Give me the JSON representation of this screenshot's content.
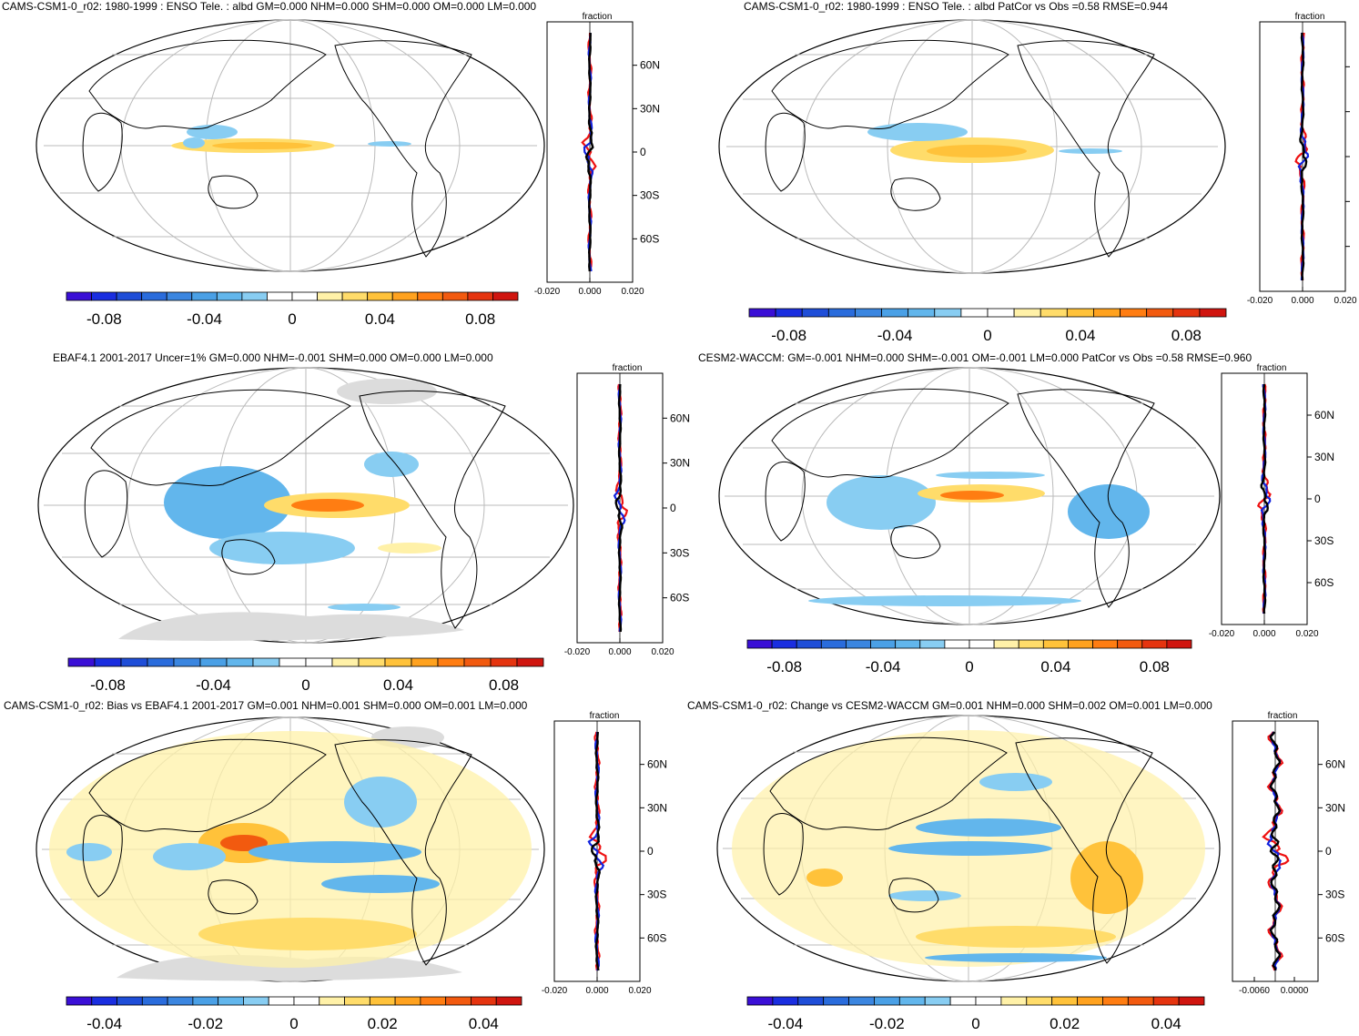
{
  "palette": [
    "#3a0fd6",
    "#1a2ee0",
    "#1f4ed8",
    "#2a6cdc",
    "#3b86e0",
    "#4aa0e6",
    "#62b6ec",
    "#88cdf2",
    "#ffffff",
    "#ffffff",
    "#fff1a8",
    "#ffdc6a",
    "#ffc23a",
    "#ffa21f",
    "#ff7d12",
    "#f25a0f",
    "#e5340f",
    "#d0150f"
  ],
  "profile_labels": {
    "fraction": "fraction"
  },
  "lat_ticks": [
    "60N",
    "30N",
    "0",
    "30S",
    "60S"
  ],
  "colors": {
    "red": "#ee1111",
    "blue": "#1122dd",
    "black": "#000000",
    "grid": "#bbbbbb",
    "land_mask": "#dcdcdc"
  },
  "panels": [
    {
      "id": "p1",
      "title": "CAMS-CSM1-0_r02: 1980-1999 : ENSO Tele. : albd GM=0.000 NHM=0.000 SHM=0.000 OM=0.000 LM=0.000",
      "colorbar_labels": [
        "-0.08",
        "-0.04",
        "0",
        "0.04",
        "0.08"
      ],
      "profile_xticks": [
        "-0.020",
        "0.000",
        "0.020"
      ],
      "show_lat_labels": true
    },
    {
      "id": "p2",
      "title": "CAMS-CSM1-0_r02: 1980-1999 : ENSO Tele. : albd PatCor vs Obs =0.58 RMSE=0.944",
      "colorbar_labels": [
        "-0.08",
        "-0.04",
        "0",
        "0.04",
        "0.08"
      ],
      "profile_xticks": [
        "-0.020",
        "0.000",
        "0.020"
      ],
      "show_lat_labels": false
    },
    {
      "id": "p3",
      "title": "EBAF4.1 2001-2017 Uncer=1% GM=0.000 NHM=-0.001 SHM=0.000 OM=0.000 LM=0.000",
      "colorbar_labels": [
        "-0.08",
        "-0.04",
        "0",
        "0.04",
        "0.08"
      ],
      "profile_xticks": [
        "-0.020",
        "0.000",
        "0.020"
      ],
      "show_lat_labels": true
    },
    {
      "id": "p4",
      "title": "CESM2-WACCM: GM=-0.001 NHM=0.000 SHM=-0.001 OM=-0.001 LM=0.000 PatCor vs Obs =0.58 RMSE=0.960",
      "colorbar_labels": [
        "-0.08",
        "-0.04",
        "0",
        "0.04",
        "0.08"
      ],
      "profile_xticks": [
        "-0.020",
        "0.000",
        "0.020"
      ],
      "show_lat_labels": true
    },
    {
      "id": "p5",
      "title": "CAMS-CSM1-0_r02: Bias vs EBAF4.1 2001-2017 GM=0.001 NHM=0.001 SHM=0.000 OM=0.001 LM=0.000",
      "colorbar_labels": [
        "-0.04",
        "-0.02",
        "0",
        "0.02",
        "0.04"
      ],
      "profile_xticks": [
        "-0.020",
        "0.000",
        "0.020"
      ],
      "show_lat_labels": true
    },
    {
      "id": "p6",
      "title": "CAMS-CSM1-0_r02: Change vs CESM2-WACCM GM=0.001 NHM=0.000 SHM=0.002 OM=0.001 LM=0.000",
      "colorbar_labels": [
        "-0.04",
        "-0.02",
        "0",
        "0.02",
        "0.04"
      ],
      "profile_xticks": [
        "-0.0060",
        "0.0000"
      ],
      "show_lat_labels": true
    }
  ]
}
